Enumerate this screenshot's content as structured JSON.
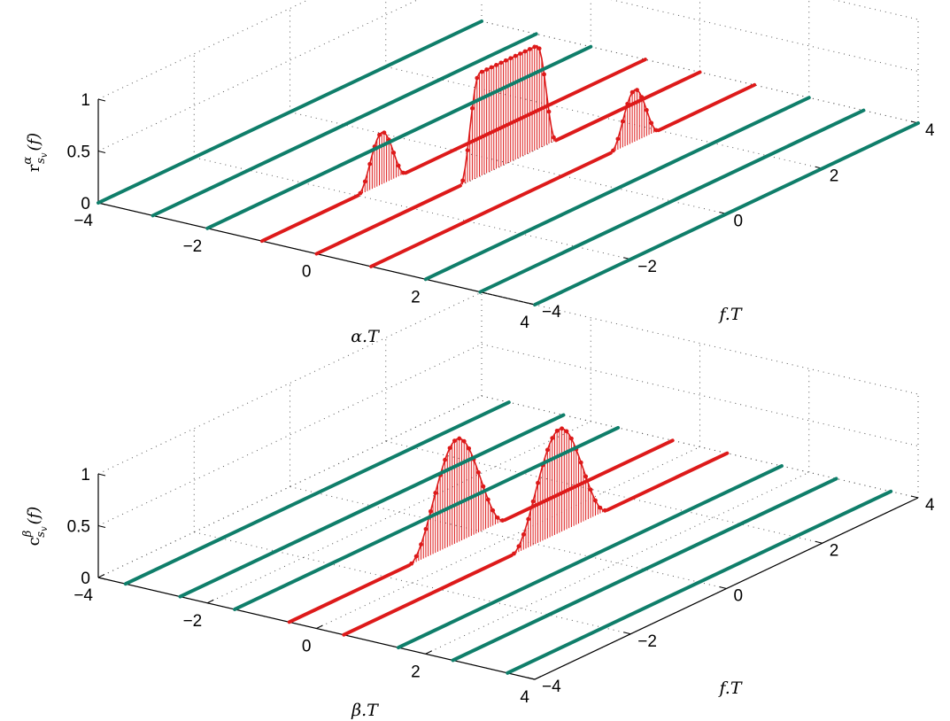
{
  "colors": {
    "on_line": "#dd1a1a",
    "off_line": "#0f7e6a",
    "grid": "#555555",
    "axis": "#000000"
  },
  "chart_data": [
    {
      "type": "stem3d",
      "xlabel": "α.T",
      "ylabel": "f.T",
      "zlabel": "r^α_{s_v}(f)",
      "zlabel_main": "r",
      "zlabel_sup": "α",
      "zlabel_sub": "s",
      "zlabel_subsub": "v",
      "zlabel_arg": "(f)",
      "xlim": [
        -4,
        4
      ],
      "ylim": [
        -4,
        4
      ],
      "zlim": [
        0,
        1
      ],
      "xticks": [
        "−4",
        "−2",
        "0",
        "2",
        "4"
      ],
      "yticks": [
        "−4",
        "−2",
        "0",
        "2",
        "4"
      ],
      "zticks": [
        "0",
        "0.5",
        "1"
      ],
      "grid": true,
      "lines": [
        {
          "x": -4,
          "active": false
        },
        {
          "x": -3,
          "active": false
        },
        {
          "x": -2,
          "active": false
        },
        {
          "x": -1,
          "active": true
        },
        {
          "x": 0,
          "active": true
        },
        {
          "x": 1,
          "active": true
        },
        {
          "x": 2,
          "active": false
        },
        {
          "x": 3,
          "active": false
        },
        {
          "x": 4,
          "active": false
        }
      ],
      "bumps": [
        {
          "x": -1,
          "center": -1.5,
          "halfwidth": 0.5,
          "peak": 0.5,
          "shape": "raised-cosine"
        },
        {
          "x": 0,
          "center": 0,
          "halfwidth": 1.0,
          "peak": 1.0,
          "shape": "plateau"
        },
        {
          "x": 1,
          "center": 1.5,
          "halfwidth": 0.5,
          "peak": 0.5,
          "shape": "raised-cosine"
        }
      ]
    },
    {
      "type": "stem3d",
      "xlabel": "β.T",
      "ylabel": "f.T",
      "zlabel": "c^β_{s_v}(f)",
      "zlabel_main": "c",
      "zlabel_sup": "β",
      "zlabel_sub": "s",
      "zlabel_subsub": "v",
      "zlabel_arg": "(f)",
      "xlim": [
        -4,
        4
      ],
      "ylim": [
        -4,
        4
      ],
      "zlim": [
        0,
        1
      ],
      "xticks": [
        "−4",
        "−2",
        "0",
        "2",
        "4"
      ],
      "yticks": [
        "−4",
        "−2",
        "0",
        "2",
        "4"
      ],
      "zticks": [
        "0",
        "0.5",
        "1"
      ],
      "grid": true,
      "lines": [
        {
          "x": -3.5,
          "active": false
        },
        {
          "x": -2.5,
          "active": false
        },
        {
          "x": -1.5,
          "active": false
        },
        {
          "x": -0.5,
          "active": true
        },
        {
          "x": 0.5,
          "active": true
        },
        {
          "x": 1.5,
          "active": false
        },
        {
          "x": 2.5,
          "active": false
        },
        {
          "x": 3.5,
          "active": false
        }
      ],
      "bumps": [
        {
          "x": -0.5,
          "center": -0.5,
          "halfwidth": 1.0,
          "peak": 1.0,
          "shape": "raised-cosine"
        },
        {
          "x": 0.5,
          "center": 0.5,
          "halfwidth": 1.0,
          "peak": 1.0,
          "shape": "raised-cosine"
        }
      ]
    }
  ]
}
